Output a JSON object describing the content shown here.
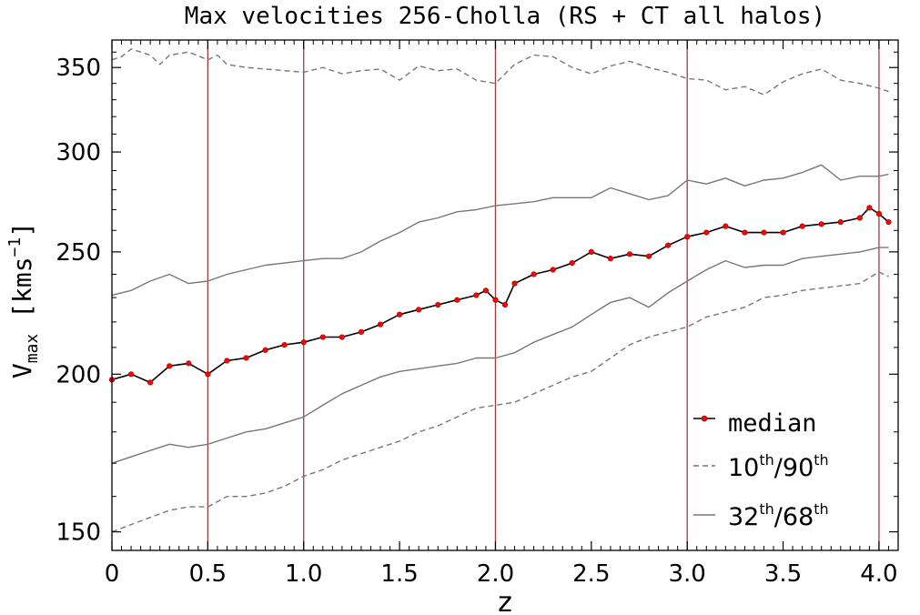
{
  "chart_data": {
    "type": "line",
    "title": "Max velocities 256-Cholla (RS + CT all halos)",
    "xlabel": "z",
    "ylabel_base": "V",
    "ylabel_sub": "max",
    "ylabel_unit_open": " [kms",
    "ylabel_unit_exp": "−1",
    "ylabel_unit_close": "]",
    "xlim": [
      0,
      4.1
    ],
    "ylim": [
      145,
      368
    ],
    "y_scale": "log",
    "x_ticks": [
      0,
      0.5,
      1.0,
      1.5,
      2.0,
      2.5,
      3.0,
      3.5,
      4.0
    ],
    "x_tick_labels": [
      "0",
      "0.5",
      "1.0",
      "1.5",
      "2.0",
      "2.5",
      "3.0",
      "3.5",
      "4.0"
    ],
    "y_ticks": [
      150,
      200,
      250,
      300,
      350
    ],
    "y_tick_labels": [
      "150",
      "200",
      "250",
      "300",
      "350"
    ],
    "vertical_lines": [
      0.5,
      1.0,
      2.0,
      3.0,
      4.0
    ],
    "grid": false,
    "legend_position": "bottom-right",
    "colors": {
      "median_line": "#000000",
      "median_marker": "#ff0000",
      "percentile_lines": "#777777",
      "vertical_lines": "#a83a3a"
    },
    "legend": [
      {
        "key": "median",
        "label": "median"
      },
      {
        "key": "p10_90",
        "label_base1": "10",
        "label_sup1": "th",
        "label_sep": "/",
        "label_base2": "90",
        "label_sup2": "th"
      },
      {
        "key": "p32_68",
        "label_base1": "32",
        "label_sup1": "th",
        "label_sep": "/",
        "label_base2": "68",
        "label_sup2": "th"
      }
    ],
    "series": [
      {
        "key": "median",
        "style": "solid-markers",
        "x": [
          0,
          0.1,
          0.2,
          0.3,
          0.4,
          0.5,
          0.6,
          0.7,
          0.8,
          0.9,
          1.0,
          1.1,
          1.2,
          1.3,
          1.4,
          1.5,
          1.6,
          1.7,
          1.8,
          1.9,
          1.95,
          2.0,
          2.05,
          2.1,
          2.2,
          2.3,
          2.4,
          2.5,
          2.6,
          2.7,
          2.8,
          2.9,
          3.0,
          3.1,
          3.2,
          3.3,
          3.4,
          3.5,
          3.6,
          3.7,
          3.8,
          3.9,
          3.95,
          4.0,
          4.05
        ],
        "y": [
          198,
          200,
          197,
          203,
          204,
          200,
          205,
          206,
          209,
          211,
          212,
          214,
          214,
          216,
          219,
          223,
          225,
          227,
          229,
          231,
          233,
          229,
          227,
          236,
          240,
          242,
          245,
          250,
          247,
          249,
          248,
          253,
          257,
          259,
          262,
          259,
          259,
          259,
          262,
          263,
          264,
          266,
          271,
          268,
          264
        ]
      },
      {
        "key": "p90",
        "style": "dashed",
        "x": [
          0,
          0.05,
          0.1,
          0.15,
          0.2,
          0.25,
          0.3,
          0.4,
          0.5,
          0.55,
          0.6,
          0.7,
          0.8,
          0.9,
          1.0,
          1.1,
          1.2,
          1.3,
          1.4,
          1.5,
          1.6,
          1.7,
          1.8,
          1.9,
          2.0,
          2.05,
          2.1,
          2.2,
          2.3,
          2.4,
          2.5,
          2.6,
          2.7,
          2.8,
          2.9,
          3.0,
          3.1,
          3.2,
          3.3,
          3.4,
          3.5,
          3.6,
          3.7,
          3.8,
          3.9,
          4.0,
          4.05
        ],
        "y": [
          355,
          357,
          362,
          360,
          358,
          352,
          358,
          360,
          355,
          358,
          352,
          350,
          349,
          348,
          347,
          350,
          346,
          348,
          349,
          342,
          351,
          348,
          349,
          342,
          340,
          346,
          352,
          358,
          357,
          350,
          346,
          351,
          354,
          350,
          347,
          343,
          342,
          336,
          338,
          333,
          341,
          346,
          349,
          342,
          340,
          337,
          335
        ]
      },
      {
        "key": "p68",
        "style": "solid",
        "x": [
          0,
          0.1,
          0.2,
          0.3,
          0.4,
          0.5,
          0.6,
          0.7,
          0.8,
          0.9,
          1.0,
          1.1,
          1.2,
          1.3,
          1.4,
          1.5,
          1.6,
          1.7,
          1.8,
          1.9,
          2.0,
          2.1,
          2.2,
          2.3,
          2.4,
          2.5,
          2.6,
          2.7,
          2.8,
          2.9,
          3.0,
          3.1,
          3.2,
          3.3,
          3.4,
          3.5,
          3.6,
          3.7,
          3.8,
          3.9,
          4.0,
          4.05
        ],
        "y": [
          231,
          233,
          237,
          240,
          236,
          237,
          240,
          242,
          244,
          245,
          246,
          247,
          247,
          250,
          255,
          259,
          264,
          266,
          269,
          270,
          272,
          273,
          274,
          276,
          276,
          276,
          281,
          278,
          275,
          277,
          285,
          283,
          286,
          282,
          285,
          286,
          289,
          293,
          285,
          287,
          287,
          288
        ]
      },
      {
        "key": "p32",
        "style": "solid",
        "x": [
          0,
          0.1,
          0.2,
          0.3,
          0.4,
          0.5,
          0.6,
          0.7,
          0.8,
          0.9,
          1.0,
          1.1,
          1.2,
          1.3,
          1.4,
          1.5,
          1.6,
          1.7,
          1.8,
          1.9,
          2.0,
          2.1,
          2.2,
          2.3,
          2.4,
          2.5,
          2.6,
          2.7,
          2.8,
          2.9,
          3.0,
          3.1,
          3.2,
          3.3,
          3.4,
          3.5,
          3.6,
          3.7,
          3.8,
          3.9,
          4.0,
          4.05
        ],
        "y": [
          170,
          172,
          174,
          176,
          175,
          176,
          178,
          180,
          181,
          183,
          185,
          189,
          193,
          196,
          199,
          201,
          202,
          203,
          204,
          206,
          206,
          208,
          212,
          215,
          218,
          223,
          228,
          230,
          226,
          232,
          237,
          242,
          246,
          243,
          244,
          244,
          247,
          248,
          249,
          250,
          252,
          252
        ]
      },
      {
        "key": "p10",
        "style": "dashed",
        "x": [
          0,
          0.1,
          0.2,
          0.3,
          0.4,
          0.5,
          0.6,
          0.7,
          0.8,
          0.9,
          1.0,
          1.1,
          1.2,
          1.3,
          1.4,
          1.5,
          1.6,
          1.7,
          1.8,
          1.9,
          2.0,
          2.1,
          2.2,
          2.3,
          2.4,
          2.5,
          2.6,
          2.7,
          2.8,
          2.9,
          3.0,
          3.1,
          3.2,
          3.3,
          3.4,
          3.5,
          3.6,
          3.7,
          3.8,
          3.9,
          4.0,
          4.05
        ],
        "y": [
          150,
          152,
          154,
          156,
          157,
          157,
          160,
          160,
          161,
          163,
          166,
          168,
          171,
          173,
          175,
          177,
          180,
          182,
          185,
          188,
          189,
          190,
          193,
          196,
          199,
          201,
          206,
          211,
          214,
          216,
          218,
          222,
          224,
          226,
          230,
          231,
          233,
          234,
          235,
          236,
          241,
          239
        ]
      }
    ]
  }
}
